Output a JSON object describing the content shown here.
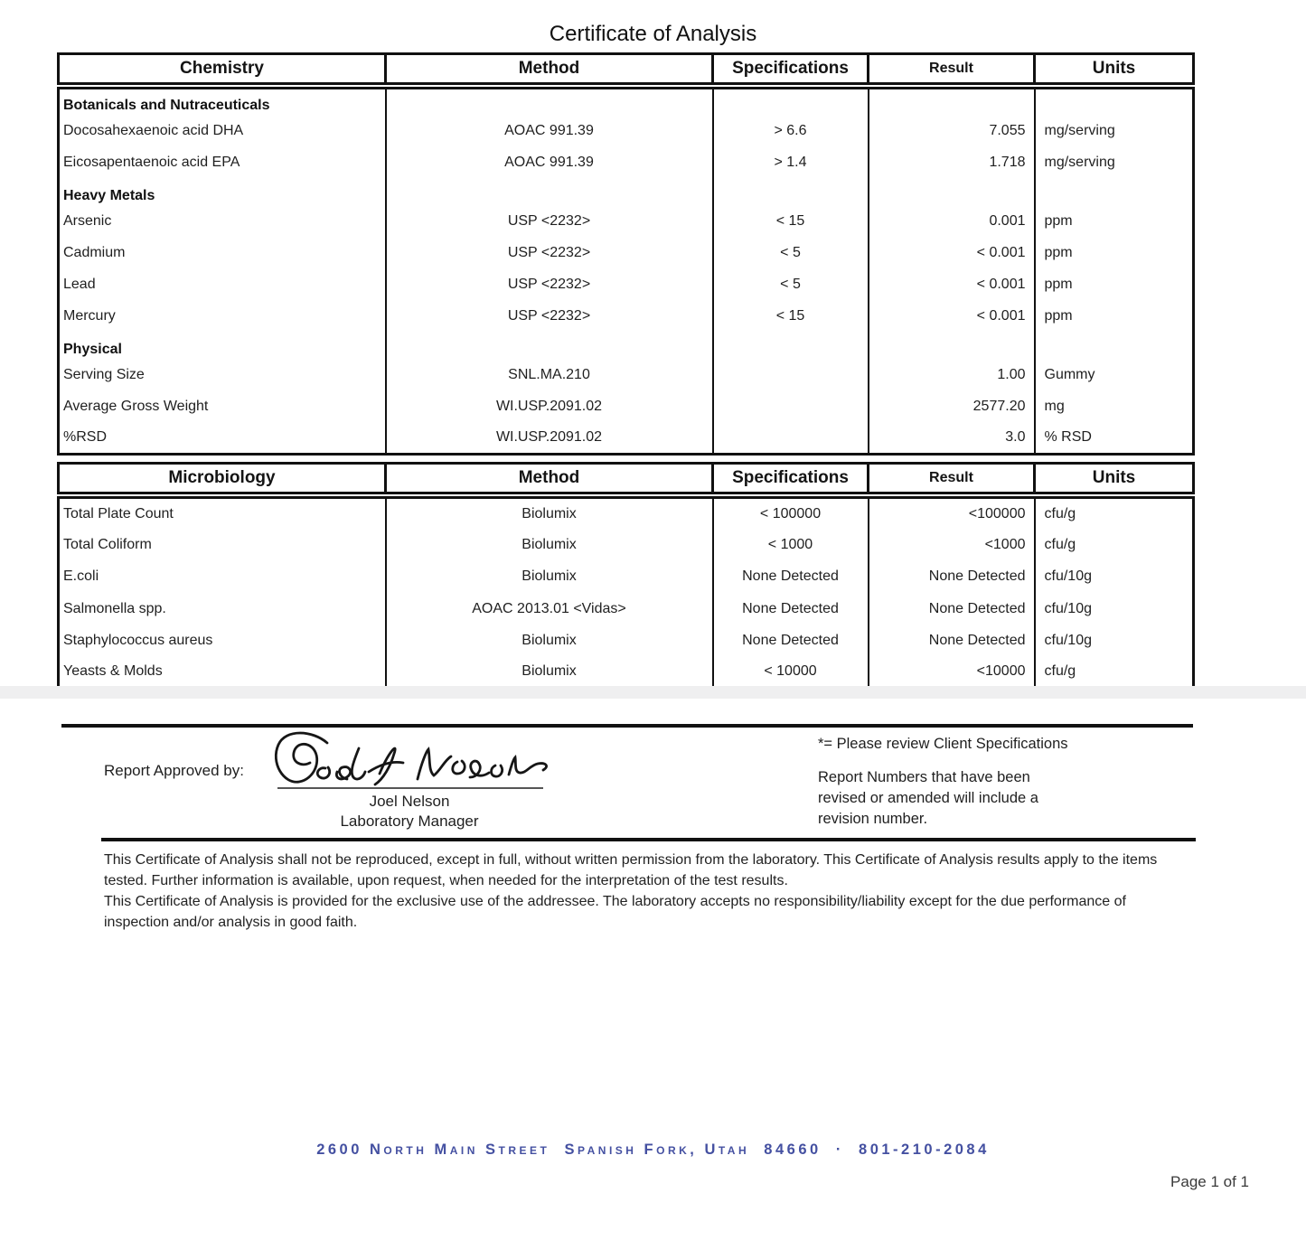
{
  "page": {
    "title": "Certificate of Analysis",
    "page_number": "Page 1 of 1"
  },
  "columns": {
    "method": "Method",
    "specifications": "Specifications",
    "result": "Result",
    "units": "Units"
  },
  "chemistry_table": {
    "title": "Chemistry",
    "rows": [
      {
        "type": "section",
        "name": "Botanicals and Nutraceuticals"
      },
      {
        "type": "data",
        "name": "Docosahexaenoic acid DHA",
        "method": "AOAC 991.39",
        "spec": "> 6.6",
        "result": "7.055",
        "units": "mg/serving"
      },
      {
        "type": "data",
        "name": "Eicosapentaenoic acid EPA",
        "method": "AOAC 991.39",
        "spec": "> 1.4",
        "result": "1.718",
        "units": "mg/serving"
      },
      {
        "type": "section",
        "name": "Heavy Metals"
      },
      {
        "type": "data",
        "name": "Arsenic",
        "method": "USP <2232>",
        "spec": "< 15",
        "result": "0.001",
        "units": "ppm"
      },
      {
        "type": "data",
        "name": "Cadmium",
        "method": "USP <2232>",
        "spec": "< 5",
        "result": "< 0.001",
        "units": "ppm"
      },
      {
        "type": "data",
        "name": "Lead",
        "method": "USP <2232>",
        "spec": "< 5",
        "result": "< 0.001",
        "units": "ppm"
      },
      {
        "type": "data",
        "name": "Mercury",
        "method": "USP <2232>",
        "spec": "< 15",
        "result": "< 0.001",
        "units": "ppm"
      },
      {
        "type": "section",
        "name": "Physical"
      },
      {
        "type": "data",
        "name": "Serving Size",
        "method": "SNL.MA.210",
        "spec": "",
        "result": "1.00",
        "units": "Gummy"
      },
      {
        "type": "data",
        "name": "Average Gross Weight",
        "method": "WI.USP.2091.02",
        "spec": "",
        "result": "2577.20",
        "units": "mg"
      },
      {
        "type": "data",
        "name": "%RSD",
        "method": "WI.USP.2091.02",
        "spec": "",
        "result": "3.0",
        "units": "% RSD"
      }
    ]
  },
  "microbiology_table": {
    "title": "Microbiology",
    "rows": [
      {
        "type": "data",
        "name": "Total Plate Count",
        "method": "Biolumix",
        "spec": "< 100000",
        "result": "<100000",
        "units": "cfu/g"
      },
      {
        "type": "data",
        "name": "Total Coliform",
        "method": "Biolumix",
        "spec": "< 1000",
        "result": "<1000",
        "units": "cfu/g"
      },
      {
        "type": "data",
        "name": "E.coli",
        "method": "Biolumix",
        "spec": "None Detected",
        "result": "None Detected",
        "units": "cfu/10g"
      },
      {
        "type": "data",
        "name": "Salmonella spp.",
        "method": "AOAC 2013.01 <Vidas>",
        "spec": "None Detected",
        "result": "None Detected",
        "units": "cfu/10g"
      },
      {
        "type": "data",
        "name": "Staphylococcus aureus",
        "method": "Biolumix",
        "spec": "None Detected",
        "result": "None Detected",
        "units": "cfu/10g"
      },
      {
        "type": "data",
        "name": "Yeasts & Molds",
        "method": "Biolumix",
        "spec": "< 10000",
        "result": "<10000",
        "units": "cfu/g"
      }
    ]
  },
  "approval": {
    "label": "Report Approved by:",
    "signature_text": "Joel L Nelson",
    "signer_name": "Joel Nelson",
    "signer_title": "Laboratory Manager"
  },
  "notes": {
    "client_spec_note": "*= Please review Client Specifications",
    "revision_note": "Report Numbers that have been revised or amended will include a revision number."
  },
  "disclaimer": {
    "paragraph1": "This Certificate of Analysis shall not be reproduced, except in full, without written permission from the laboratory. This Certificate of Analysis results apply to the items tested. Further information is available, upon request, when needed for the interpretation of the test results.",
    "paragraph2": "This Certificate of Analysis is provided for the exclusive use of the addressee. The laboratory accepts no responsibility/liability except for the due performance of inspection and/or analysis in good faith."
  },
  "footer": {
    "address": "2600 North Main Street  Spanish Fork, Utah  84660  ·  801-210-2084",
    "address_color": "#4450a1"
  }
}
